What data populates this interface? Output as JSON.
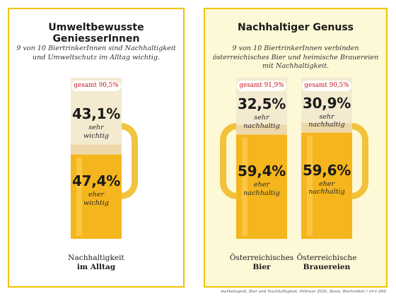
{
  "panels": {
    "left": {
      "title": "Umweltbewusste GeniesserInnen",
      "subtitle": "9 von 10 BiertrinkerInnen sind Nachhaltigkeit und Umweltschutz im Alltag wichtig."
    },
    "right": {
      "title": "Nachhaltiger Genuss",
      "subtitle": "9 von 10 BiertrinkerInnen verbinden österreichisches Bier und heimische Brauereien mit Nachhaltigkeit."
    }
  },
  "source": "marketagent, Bier und Nachhaltigkeit, Februar 2020, Basis: Biertrinker / n=1.000",
  "colors": {
    "border": "#f2c200",
    "beer": "#f5b51c",
    "foam": "#f3ead0",
    "gesamt_text": "#c8141c",
    "right_panel_bg": "#fdf8d6"
  },
  "chart_data": [
    {
      "type": "bar",
      "stacked": true,
      "category_line1": "Nachhaltigkeit",
      "category_line2": "im Alltag",
      "total_label": "gesamt 90,5%",
      "total": 90.5,
      "segments": [
        {
          "value": 43.1,
          "value_label": "43,1%",
          "label_line1": "sehr",
          "label_line2": "wichtig"
        },
        {
          "value": 47.4,
          "value_label": "47,4%",
          "label_line1": "eher",
          "label_line2": "wichtig"
        }
      ]
    },
    {
      "type": "bar",
      "stacked": true,
      "category_line1": "Österreichisches",
      "category_line2": "Bier",
      "total_label": "gesamt 91,9%",
      "total": 91.9,
      "segments": [
        {
          "value": 32.5,
          "value_label": "32,5%",
          "label_line1": "sehr",
          "label_line2": "nachhaltig"
        },
        {
          "value": 59.4,
          "value_label": "59,4%",
          "label_line1": "eher",
          "label_line2": "nachhaltig"
        }
      ]
    },
    {
      "type": "bar",
      "stacked": true,
      "category_line1": "Österreichische",
      "category_line2": "Brauereien",
      "total_label": "gesamt 90,5%",
      "total": 90.5,
      "segments": [
        {
          "value": 30.9,
          "value_label": "30,9%",
          "label_line1": "sehr",
          "label_line2": "nachhaltig"
        },
        {
          "value": 59.6,
          "value_label": "59,6%",
          "label_line1": "eher",
          "label_line2": "nachhaltig"
        }
      ]
    }
  ]
}
